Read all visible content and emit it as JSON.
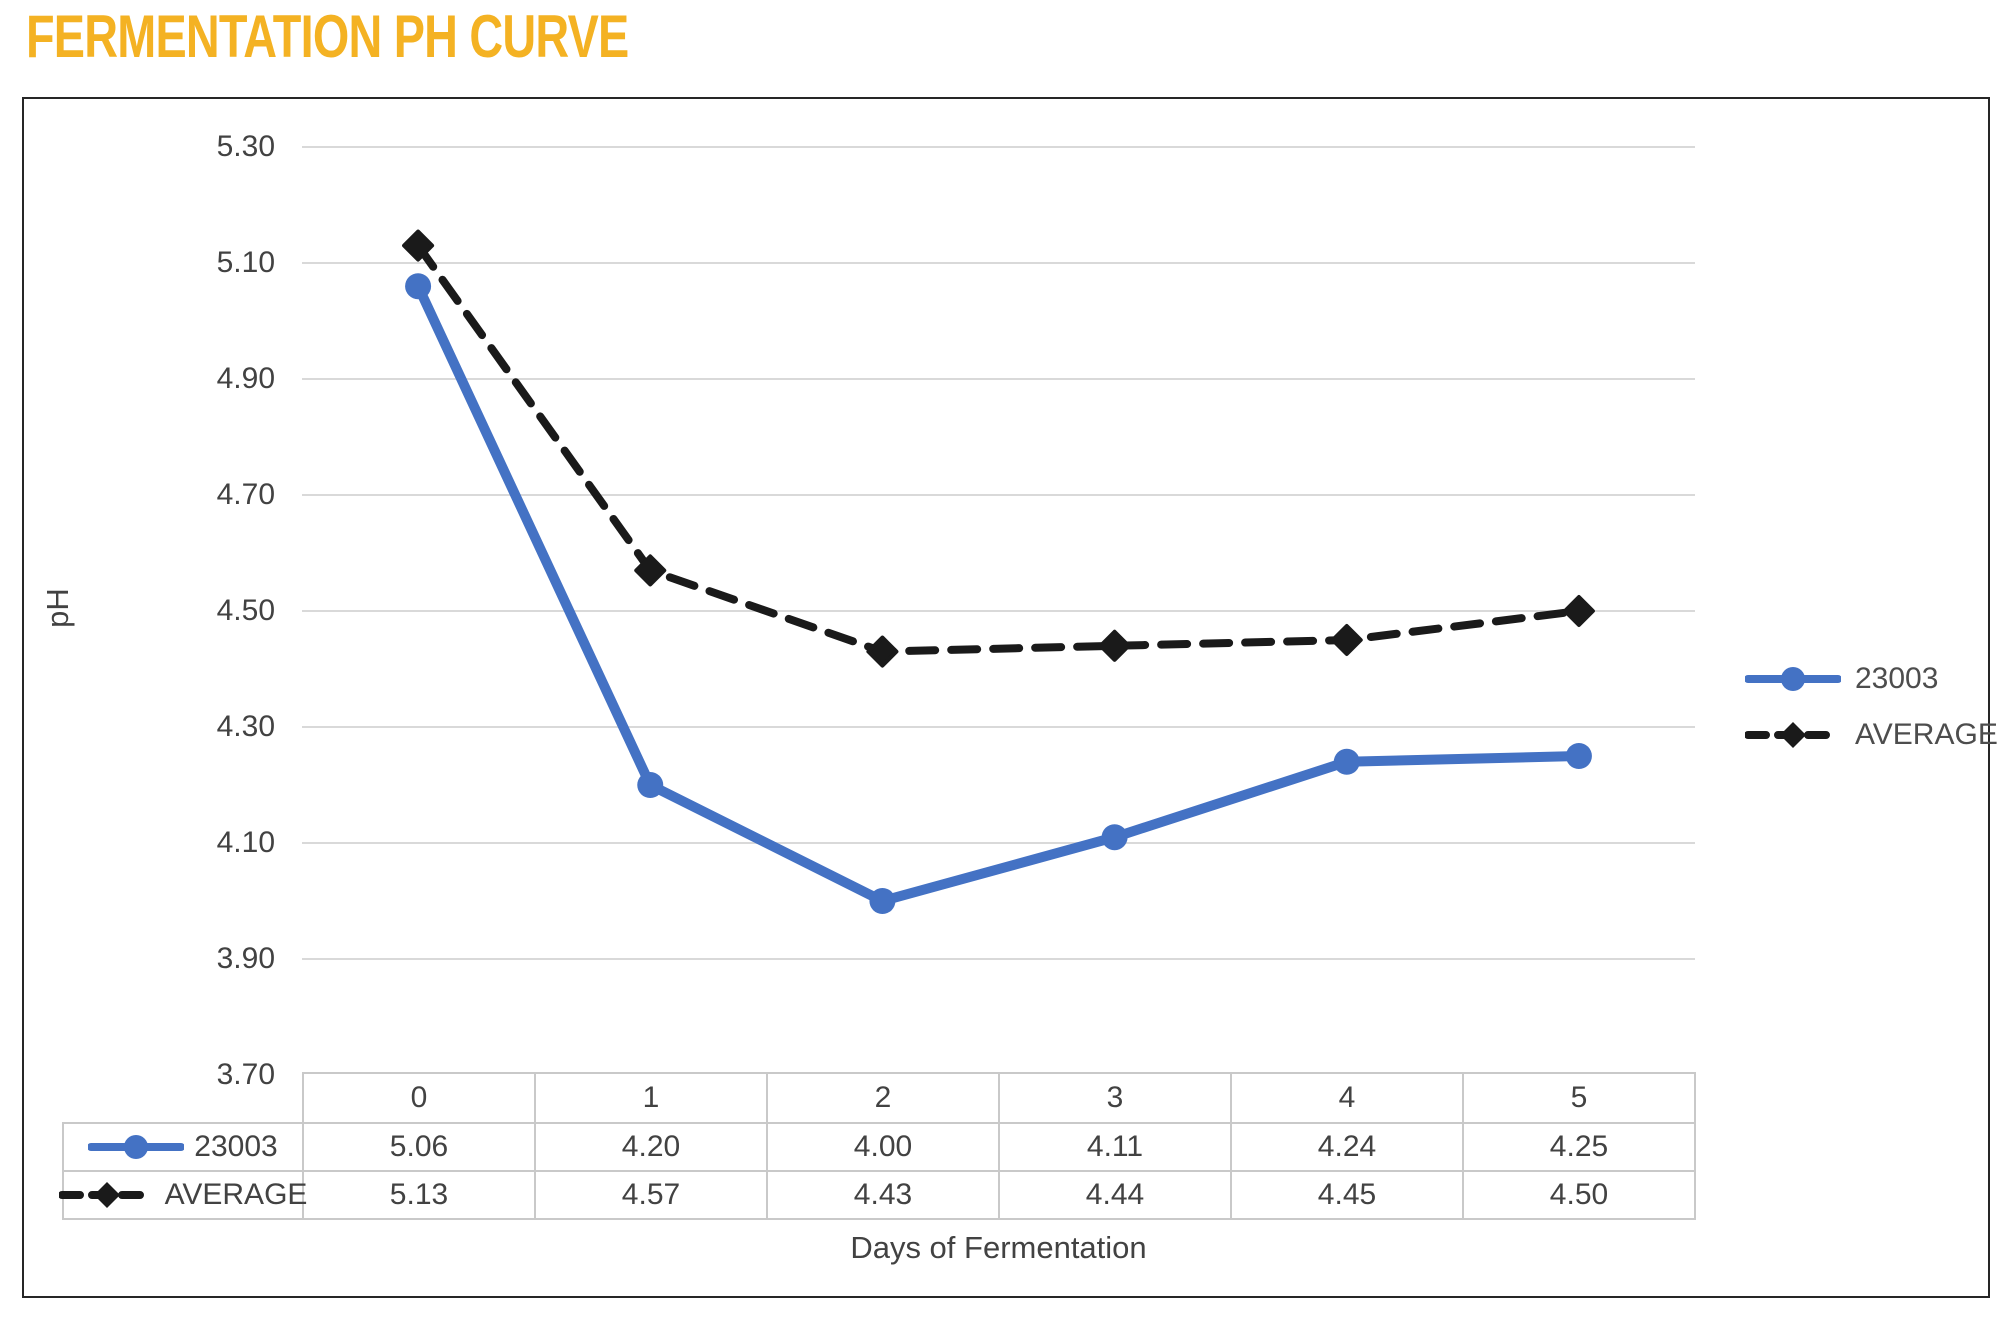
{
  "page_title": "FERMENTATION PH CURVE",
  "colors": {
    "title": "#F4B223",
    "series_23003": "#4472C4",
    "series_average": "#1A1A1A",
    "gridline": "#D9D9D9",
    "axis_text": "#424242",
    "table_border": "#C9C9C9",
    "frame_border": "#262626"
  },
  "chart_data": {
    "type": "line",
    "title": "FERMENTATION PH CURVE",
    "xlabel": "Days of Fermentation",
    "ylabel": "pH",
    "x": [
      0,
      1,
      2,
      3,
      4,
      5
    ],
    "series": [
      {
        "name": "23003",
        "values": [
          5.06,
          4.2,
          4.0,
          4.11,
          4.24,
          4.25
        ],
        "color": "#4472C4",
        "line_style": "solid",
        "marker": "circle"
      },
      {
        "name": "AVERAGE",
        "values": [
          5.13,
          4.57,
          4.43,
          4.44,
          4.45,
          4.5
        ],
        "color": "#1A1A1A",
        "line_style": "dashed",
        "marker": "diamond"
      }
    ],
    "ylim": [
      3.7,
      5.3
    ],
    "ytick_step": 0.2,
    "yticks": [
      "5.30",
      "5.10",
      "4.90",
      "4.70",
      "4.50",
      "4.30",
      "4.10",
      "3.90",
      "3.70"
    ],
    "grid": true,
    "legend_position": "right",
    "data_table_shown": true
  },
  "table": {
    "columns": [
      "0",
      "1",
      "2",
      "3",
      "4",
      "5"
    ],
    "rows": [
      {
        "label": "23003",
        "values": [
          "5.06",
          "4.20",
          "4.00",
          "4.11",
          "4.24",
          "4.25"
        ]
      },
      {
        "label": "AVERAGE",
        "values": [
          "5.13",
          "4.57",
          "4.43",
          "4.44",
          "4.45",
          "4.50"
        ]
      }
    ]
  },
  "legend": {
    "items": [
      {
        "label": "23003"
      },
      {
        "label": "AVERAGE"
      }
    ]
  }
}
